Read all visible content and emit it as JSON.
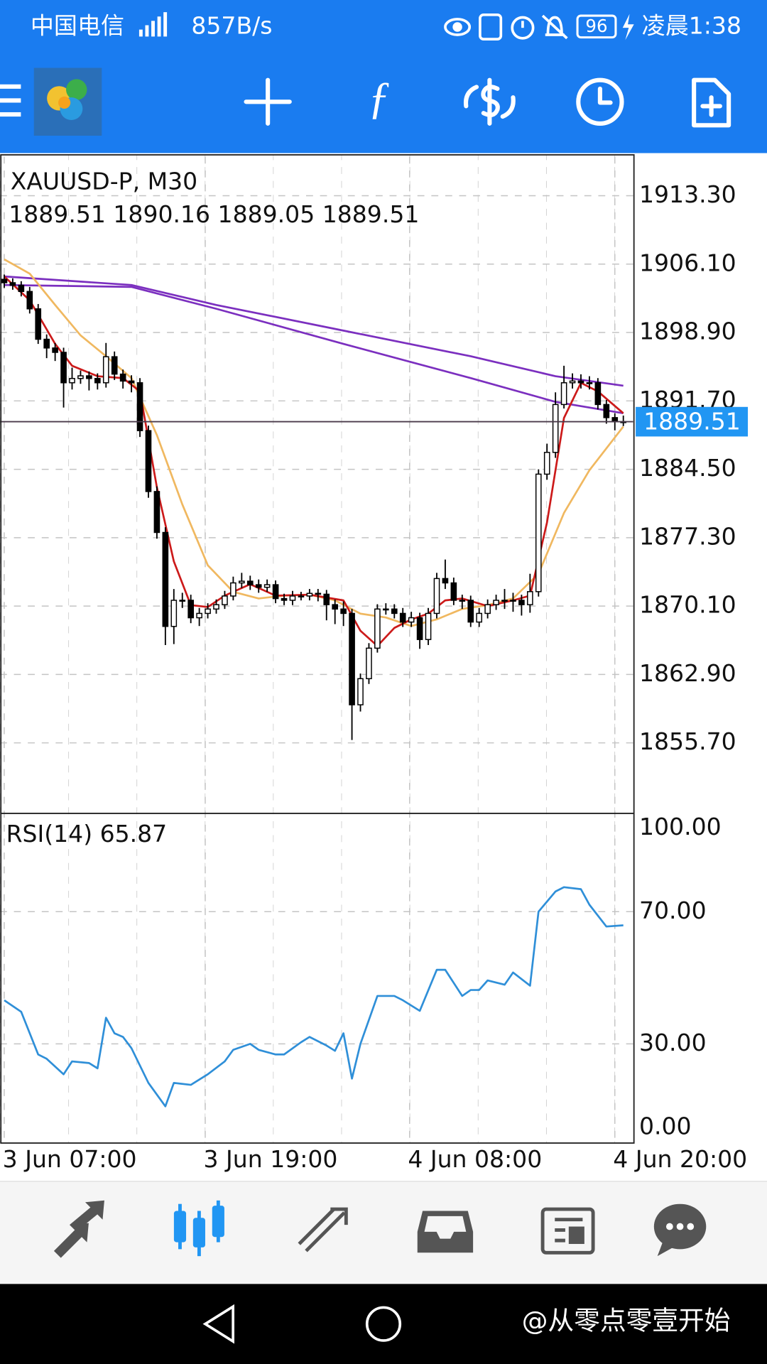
{
  "status_bar": {
    "carrier": "中国电信",
    "speed": "857B/s",
    "battery": "96",
    "time": "凌晨1:38"
  },
  "chart_data": [
    {
      "type": "candlestick",
      "title": "XAUUSD-P, M30",
      "subtitle": "1889.51 1890.16 1889.05 1889.51",
      "xlim": [
        -0.5,
        74.15
      ],
      "xticks": [
        {
          "value": 0,
          "label": "3 Jun 07:00"
        },
        {
          "value": 23.7,
          "label": "3 Jun 19:00"
        },
        {
          "value": 47.8,
          "label": "4 Jun 08:00"
        },
        {
          "value": 72,
          "label": "4 Jun 20:00"
        }
      ],
      "ylim": [
        1848.28,
        1917.42
      ],
      "yticks": [
        {
          "value": 1913.3,
          "label": "1913.30"
        },
        {
          "value": 1906.1,
          "label": "1906.10"
        },
        {
          "value": 1898.9,
          "label": "1898.90"
        },
        {
          "value": 1891.7,
          "label": "1891.70"
        },
        {
          "value": 1884.5,
          "label": "1884.50"
        },
        {
          "value": 1877.3,
          "label": "1877.30"
        },
        {
          "value": 1870.1,
          "label": "1870.10"
        },
        {
          "value": 1862.9,
          "label": "1862.90"
        },
        {
          "value": 1855.7,
          "label": "1855.70"
        }
      ],
      "grid": true,
      "up_color": "#ffffff",
      "down_color": "#000000",
      "wick_color": "#000000",
      "last_price": 1889.51,
      "last_price_color": "#2196f3",
      "open": [
        1904.5,
        1904.14,
        1903.87,
        1903.22,
        1901.39,
        1898.19,
        1897.27,
        1896.81,
        1893.61,
        1894.06,
        1894.34,
        1894.06,
        1893.61,
        1896.35,
        1894.52,
        1893.79,
        1893.61,
        1888.57,
        1882.16,
        1877.85,
        1867.96,
        1870.71,
        1870.71,
        1868.87,
        1869.33,
        1869.79,
        1870.25,
        1871.16,
        1872.54,
        1872.72,
        1872.35,
        1872.08,
        1872.35,
        1870.89,
        1870.71,
        1871.16,
        1871.16,
        1871.44,
        1871.35,
        1870.25,
        1869.79,
        1869.33,
        1859.71,
        1862.46,
        1865.67,
        1869.79,
        1869.79,
        1869.33,
        1868.42,
        1868.87,
        1866.58,
        1869.33,
        1873.0,
        1872.54,
        1870.71,
        1870.71,
        1868.42,
        1869.33,
        1870.25,
        1870.71,
        1870.71,
        1870.71,
        1870.25,
        1871.62,
        1883.99,
        1886.28,
        1891.32,
        1893.61,
        1893.79,
        1893.61,
        1893.61,
        1891.32,
        1889.94,
        1889.51
      ],
      "high": [
        1905.0,
        1904.6,
        1904.3,
        1903.7,
        1901.9,
        1898.7,
        1897.8,
        1897.3,
        1895.2,
        1894.9,
        1894.8,
        1894.6,
        1897.8,
        1896.9,
        1895.0,
        1894.4,
        1894.1,
        1889.1,
        1882.7,
        1878.4,
        1871.9,
        1871.5,
        1871.3,
        1869.9,
        1870.4,
        1870.8,
        1871.7,
        1873.2,
        1873.6,
        1873.3,
        1872.9,
        1872.9,
        1872.8,
        1871.4,
        1871.7,
        1871.6,
        1871.9,
        1871.9,
        1871.8,
        1870.8,
        1870.6,
        1869.8,
        1863.0,
        1866.2,
        1870.3,
        1870.4,
        1870.3,
        1869.9,
        1869.5,
        1869.4,
        1869.9,
        1873.6,
        1875.0,
        1873.1,
        1871.3,
        1871.2,
        1869.9,
        1870.8,
        1871.3,
        1871.9,
        1871.5,
        1871.3,
        1873.5,
        1884.5,
        1887.2,
        1892.6,
        1895.4,
        1894.6,
        1894.5,
        1894.3,
        1894.1,
        1891.8,
        1890.4,
        1890.16
      ],
      "low": [
        1903.6,
        1903.4,
        1902.7,
        1900.9,
        1897.7,
        1896.2,
        1895.9,
        1891.0,
        1892.9,
        1893.5,
        1892.8,
        1892.9,
        1893.1,
        1893.9,
        1893.0,
        1892.6,
        1887.9,
        1881.5,
        1877.2,
        1866.0,
        1866.1,
        1869.9,
        1868.3,
        1868.0,
        1868.8,
        1869.3,
        1869.8,
        1870.7,
        1872.0,
        1871.8,
        1871.5,
        1871.6,
        1870.4,
        1870.2,
        1870.2,
        1870.7,
        1870.7,
        1870.6,
        1868.6,
        1868.2,
        1868.0,
        1856.0,
        1859.0,
        1861.9,
        1865.2,
        1869.2,
        1868.8,
        1867.9,
        1867.9,
        1865.6,
        1866.0,
        1868.8,
        1871.9,
        1870.2,
        1869.8,
        1867.9,
        1867.9,
        1868.8,
        1869.7,
        1869.8,
        1869.5,
        1869.1,
        1869.4,
        1871.1,
        1883.4,
        1885.7,
        1890.9,
        1893.0,
        1893.0,
        1892.9,
        1890.8,
        1889.3,
        1888.6,
        1889.05
      ],
      "close": [
        1904.14,
        1903.87,
        1903.22,
        1901.39,
        1898.19,
        1897.27,
        1896.81,
        1893.61,
        1894.06,
        1894.34,
        1894.06,
        1893.61,
        1896.35,
        1894.52,
        1893.79,
        1893.61,
        1888.57,
        1882.16,
        1877.85,
        1867.96,
        1870.71,
        1870.71,
        1868.87,
        1869.33,
        1869.79,
        1870.25,
        1871.16,
        1872.54,
        1872.72,
        1872.35,
        1872.08,
        1872.35,
        1870.89,
        1870.71,
        1871.16,
        1871.16,
        1871.44,
        1871.35,
        1870.25,
        1869.79,
        1869.33,
        1859.71,
        1862.46,
        1865.67,
        1869.79,
        1869.79,
        1869.33,
        1868.42,
        1868.87,
        1866.58,
        1869.33,
        1873.0,
        1872.54,
        1870.71,
        1870.71,
        1868.42,
        1869.33,
        1870.25,
        1870.71,
        1870.71,
        1870.71,
        1870.25,
        1871.62,
        1883.99,
        1886.28,
        1891.32,
        1893.61,
        1893.79,
        1893.61,
        1893.61,
        1891.32,
        1889.94,
        1889.51,
        1889.51
      ],
      "series": [
        {
          "color": "#7b2fbf",
          "x": [
            0,
            15,
            25,
            40,
            55,
            65,
            73
          ],
          "values": [
            1904.8,
            1903.9,
            1901.8,
            1899.1,
            1896.4,
            1894.3,
            1893.3
          ]
        },
        {
          "color": "#7b2fbf",
          "x": [
            0,
            15,
            25,
            40,
            55,
            65,
            73
          ],
          "values": [
            1903.9,
            1903.7,
            1901.4,
            1897.7,
            1894.1,
            1891.6,
            1890.4
          ]
        },
        {
          "color": "#f0b860",
          "x": [
            0,
            3,
            6,
            9,
            12,
            15,
            18,
            21,
            24,
            27,
            30,
            33,
            36,
            39,
            42,
            45,
            48,
            51,
            54,
            57,
            60,
            63,
            66,
            69,
            73
          ],
          "values": [
            1906.6,
            1905.1,
            1901.8,
            1898.6,
            1896.4,
            1894.1,
            1888.1,
            1880.8,
            1874.4,
            1871.6,
            1870.9,
            1871.2,
            1871.3,
            1870.7,
            1869.3,
            1868.9,
            1868.0,
            1868.7,
            1869.8,
            1870.2,
            1870.9,
            1873.5,
            1879.9,
            1884.4,
            1889.0
          ]
        },
        {
          "color": "#cc1a1a",
          "x": [
            0,
            3,
            6,
            8,
            11,
            14,
            16,
            18,
            20,
            22,
            24,
            26,
            29,
            32,
            36,
            40,
            42,
            44,
            46,
            48,
            50,
            52,
            54,
            57,
            60,
            62,
            64,
            66,
            68,
            70,
            73
          ],
          "values": [
            1904.8,
            1902.3,
            1897.7,
            1895.4,
            1894.3,
            1894.1,
            1892.7,
            1882.6,
            1874.8,
            1870.2,
            1870.0,
            1871.2,
            1872.4,
            1871.2,
            1871.3,
            1870.7,
            1867.5,
            1865.9,
            1867.8,
            1868.7,
            1869.3,
            1870.7,
            1870.9,
            1870.1,
            1870.7,
            1871.2,
            1878.9,
            1889.9,
            1893.6,
            1892.7,
            1890.4
          ]
        }
      ]
    },
    {
      "type": "line",
      "title": "RSI(14) 65.87",
      "xlim": [
        -0.5,
        74.15
      ],
      "ylim": [
        0,
        100
      ],
      "yticks": [
        {
          "value": 100,
          "label": "100.00"
        },
        {
          "value": 70,
          "label": "70.00"
        },
        {
          "value": 30,
          "label": "30.00"
        },
        {
          "value": 0,
          "label": "0.00"
        }
      ],
      "grid": true,
      "series": [
        {
          "color": "#2f8fd8",
          "x": [
            0,
            2,
            4,
            5,
            7,
            8,
            10,
            11,
            12,
            13,
            14,
            15,
            17,
            19,
            20,
            22,
            24,
            26,
            27,
            29,
            30,
            32,
            33,
            35,
            36,
            38,
            39,
            40,
            41,
            42,
            44,
            46,
            47,
            49,
            51,
            52,
            54,
            55,
            56,
            57,
            59,
            60,
            62,
            63,
            65,
            66,
            68,
            69,
            71,
            73
          ],
          "values": [
            43.2,
            39.7,
            26.8,
            25.5,
            20.8,
            24.7,
            24.2,
            22.6,
            37.9,
            33.2,
            32.1,
            28.7,
            18.2,
            11.1,
            18.2,
            17.6,
            20.8,
            24.7,
            28.2,
            30.0,
            28.2,
            26.8,
            26.8,
            30.5,
            32.1,
            29.5,
            27.9,
            33.2,
            19.5,
            30.0,
            44.5,
            44.5,
            43.2,
            40.0,
            52.4,
            52.4,
            44.5,
            46.3,
            46.3,
            49.2,
            47.9,
            51.6,
            47.6,
            70.0,
            76.1,
            77.4,
            76.8,
            72.1,
            65.5,
            65.87
          ]
        }
      ]
    }
  ],
  "watermark": "@从零点零壹开始"
}
